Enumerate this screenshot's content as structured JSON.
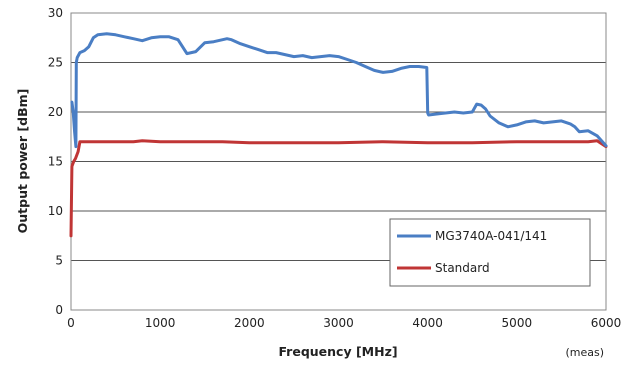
{
  "chart_data": {
    "type": "line",
    "xlabel": "Frequency [MHz]",
    "ylabel": "Output power [dBm]",
    "xlim": [
      0,
      6000
    ],
    "ylim": [
      0,
      30
    ],
    "xticks": [
      "0",
      "1000",
      "2000",
      "3000",
      "4000",
      "5000",
      "6000"
    ],
    "yticks": [
      "0",
      "5",
      "10",
      "15",
      "20",
      "25",
      "30"
    ],
    "grid": "horizontal",
    "legend_position": "lower-right",
    "note": "(meas)",
    "series": [
      {
        "name": "MG3740A-041/141",
        "color": "#4a7ec4",
        "x": [
          10,
          25,
          40,
          55,
          60,
          70,
          100,
          150,
          200,
          250,
          300,
          400,
          500,
          600,
          700,
          800,
          900,
          1000,
          1100,
          1200,
          1250,
          1300,
          1400,
          1500,
          1600,
          1700,
          1750,
          1800,
          1900,
          2000,
          2100,
          2200,
          2300,
          2400,
          2500,
          2600,
          2700,
          2800,
          2900,
          3000,
          3100,
          3200,
          3300,
          3400,
          3500,
          3600,
          3700,
          3800,
          3900,
          3990,
          4000,
          4010,
          4100,
          4200,
          4300,
          4400,
          4500,
          4550,
          4600,
          4650,
          4700,
          4800,
          4900,
          5000,
          5100,
          5200,
          5300,
          5400,
          5500,
          5600,
          5650,
          5700,
          5800,
          5900,
          6000
        ],
        "y": [
          21,
          20,
          18,
          16.5,
          25,
          25.5,
          26,
          26.2,
          26.6,
          27.5,
          27.8,
          27.9,
          27.8,
          27.6,
          27.4,
          27.2,
          27.5,
          27.6,
          27.6,
          27.3,
          26.6,
          25.9,
          26.1,
          27,
          27.1,
          27.3,
          27.4,
          27.3,
          26.9,
          26.6,
          26.3,
          26,
          26,
          25.8,
          25.6,
          25.7,
          25.5,
          25.6,
          25.7,
          25.6,
          25.3,
          25,
          24.6,
          24.2,
          24,
          24.1,
          24.4,
          24.6,
          24.6,
          24.5,
          19.9,
          19.7,
          19.8,
          19.9,
          20,
          19.9,
          20,
          20.8,
          20.7,
          20.3,
          19.6,
          18.9,
          18.5,
          18.7,
          19,
          19.1,
          18.9,
          19,
          19.1,
          18.8,
          18.5,
          18,
          18.1,
          17.6,
          16.6
        ]
      },
      {
        "name": "Standard",
        "color": "#c03535",
        "x": [
          0,
          10,
          30,
          50,
          80,
          100,
          150,
          300,
          500,
          700,
          800,
          1000,
          1200,
          1500,
          1700,
          2000,
          2500,
          3000,
          3500,
          4000,
          4500,
          5000,
          5500,
          5800,
          5900,
          6000
        ],
        "y": [
          7.5,
          14.5,
          15,
          15.3,
          16,
          17,
          17,
          17,
          17,
          17,
          17.1,
          17,
          17,
          17,
          17,
          16.9,
          16.9,
          16.9,
          17,
          16.9,
          16.9,
          17,
          17,
          17,
          17.1,
          16.5
        ]
      }
    ]
  }
}
